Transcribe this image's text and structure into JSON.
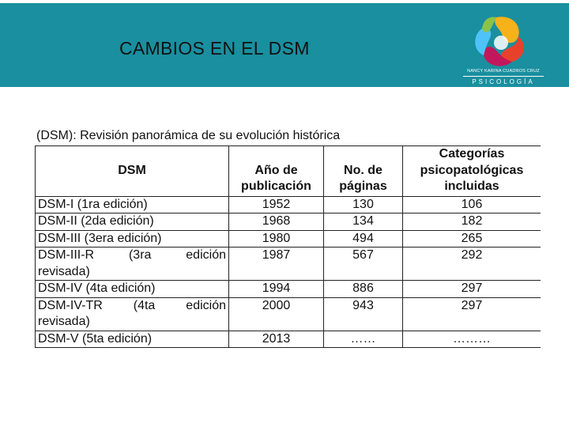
{
  "header": {
    "title": "CAMBIOS EN EL DSM",
    "logo_brand": "NANCY KARINA CUADROS CRUZ",
    "logo_subtitle": "PSICOLOGÍA",
    "background_color": "#1a8f9f"
  },
  "table": {
    "caption": "(DSM): Revisión panorámica de su evolución histórica",
    "headers": {
      "dsm": "DSM",
      "year_line1": "Año de",
      "year_line2": "publicación",
      "pages_line1": "No. de",
      "pages_line2": "páginas",
      "cat_line1": "Categorías",
      "cat_line2": "psicopatológicas",
      "cat_line3": "incluidas"
    },
    "rows": [
      {
        "name": "DSM-I  (1ra edición)",
        "year": "1952",
        "pages": "130",
        "categories": "106"
      },
      {
        "name": "DSM-II (2da edición)",
        "year": "1968",
        "pages": "134",
        "categories": "182"
      },
      {
        "name": "DSM-III (3era edición)",
        "year": "1980",
        "pages": "494",
        "categories": "265"
      },
      {
        "name_a": "DSM-III-R",
        "name_b": "(3ra",
        "name_c": "edición",
        "name_d": "revisada)",
        "year": "1987",
        "pages": "567",
        "categories": "292"
      },
      {
        "name": "DSM-IV (4ta edición)",
        "year": "1994",
        "pages": "886",
        "categories": "297"
      },
      {
        "name_a": "DSM-IV-TR",
        "name_b": "(4ta",
        "name_c": "edición",
        "name_d": "revisada)",
        "year": "2000",
        "pages": "943",
        "categories": "297"
      },
      {
        "name": "DSM-V (5ta edición)",
        "year": "2013",
        "pages": "……",
        "categories": "………"
      }
    ]
  }
}
